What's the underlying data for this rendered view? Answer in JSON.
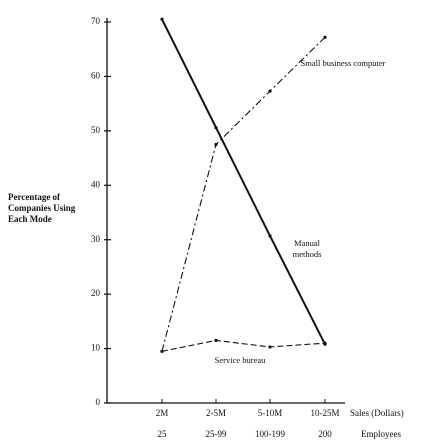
{
  "chart_data": {
    "type": "line",
    "y_label": "Percentage of Companies Using Each Mode",
    "x_label": "Sales (Dollars)",
    "x_label2": "Employees",
    "categories": [
      "2M",
      "2-5M",
      "5-10M",
      "10-25M"
    ],
    "categories2": [
      "25",
      "25-99",
      "100-199",
      "200"
    ],
    "series": [
      {
        "name": "Manual methods",
        "color": "#111111",
        "dash": "solid",
        "values": [
          70.5,
          50.6,
          30.7,
          10.8
        ]
      },
      {
        "name": "Small business computer",
        "color": "#111111",
        "dash": "dashdot",
        "values": [
          9.5,
          47.5,
          57.3,
          67.2
        ]
      },
      {
        "name": "Service bureau",
        "color": "#111111",
        "dash": "dashed",
        "values": [
          9.5,
          11.5,
          10.3,
          11.0
        ]
      }
    ],
    "ylim": [
      0,
      70
    ],
    "yticks": [
      0,
      10,
      20,
      30,
      40,
      50,
      60,
      70
    ],
    "grid": false
  }
}
